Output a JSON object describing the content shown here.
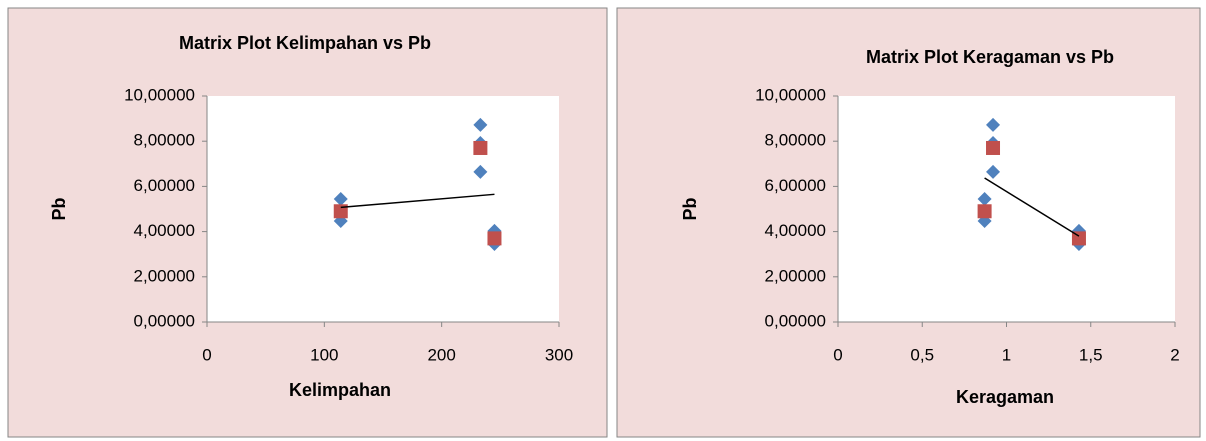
{
  "chart_data": [
    {
      "type": "scatter",
      "title": "Matrix Plot Kelimpahan vs Pb",
      "x_label": "Kelimpahan",
      "y_label": "Pb",
      "xlim": [
        0,
        300
      ],
      "xticks": [
        0,
        100,
        200,
        300
      ],
      "ylim": [
        0,
        10
      ],
      "yticks": [
        {
          "value": 0,
          "label": "0,00000"
        },
        {
          "value": 2,
          "label": "2,00000"
        },
        {
          "value": 4,
          "label": "4,00000"
        },
        {
          "value": 6,
          "label": "6,00000"
        },
        {
          "value": 8,
          "label": "8,00000"
        },
        {
          "value": 10,
          "label": "10,00000"
        }
      ],
      "series": [
        {
          "color": "#4f81bd",
          "marker": "diamond",
          "x": [
            114,
            114,
            233,
            233,
            233,
            245,
            245
          ],
          "values": [
            5.44,
            4.47,
            8.72,
            7.92,
            6.64,
            4.03,
            3.45
          ]
        },
        {
          "color": "#c0504d",
          "marker": "square",
          "x": [
            114,
            233,
            245
          ],
          "values": [
            4.9,
            7.7,
            3.7
          ]
        }
      ],
      "trendline": {
        "color": "#000000",
        "x": [
          114,
          245
        ],
        "values": [
          5.07,
          5.65
        ]
      }
    },
    {
      "type": "scatter",
      "title": "Matrix Plot Keragaman vs Pb",
      "x_label": "Keragaman",
      "y_label": "Pb",
      "xlim": [
        0,
        2
      ],
      "xticks": [
        0,
        {
          "value": 0.5,
          "label": "0,5"
        },
        1,
        {
          "value": 1.5,
          "label": "1,5"
        },
        2
      ],
      "ylim": [
        0,
        10
      ],
      "yticks": [
        {
          "value": 0,
          "label": "0,00000"
        },
        {
          "value": 2,
          "label": "2,00000"
        },
        {
          "value": 4,
          "label": "4,00000"
        },
        {
          "value": 6,
          "label": "6,00000"
        },
        {
          "value": 8,
          "label": "8,00000"
        },
        {
          "value": 10,
          "label": "10,00000"
        }
      ],
      "series": [
        {
          "color": "#4f81bd",
          "marker": "diamond",
          "x": [
            0.87,
            0.87,
            0.92,
            0.92,
            0.92,
            1.43,
            1.43
          ],
          "values": [
            5.44,
            4.47,
            8.72,
            7.92,
            6.64,
            4.03,
            3.45
          ]
        },
        {
          "color": "#c0504d",
          "marker": "square",
          "x": [
            0.87,
            0.92,
            1.43
          ],
          "values": [
            4.9,
            7.7,
            3.7
          ]
        }
      ],
      "trendline": {
        "color": "#000000",
        "x": [
          0.87,
          1.43
        ],
        "values": [
          6.37,
          3.8
        ]
      }
    }
  ]
}
